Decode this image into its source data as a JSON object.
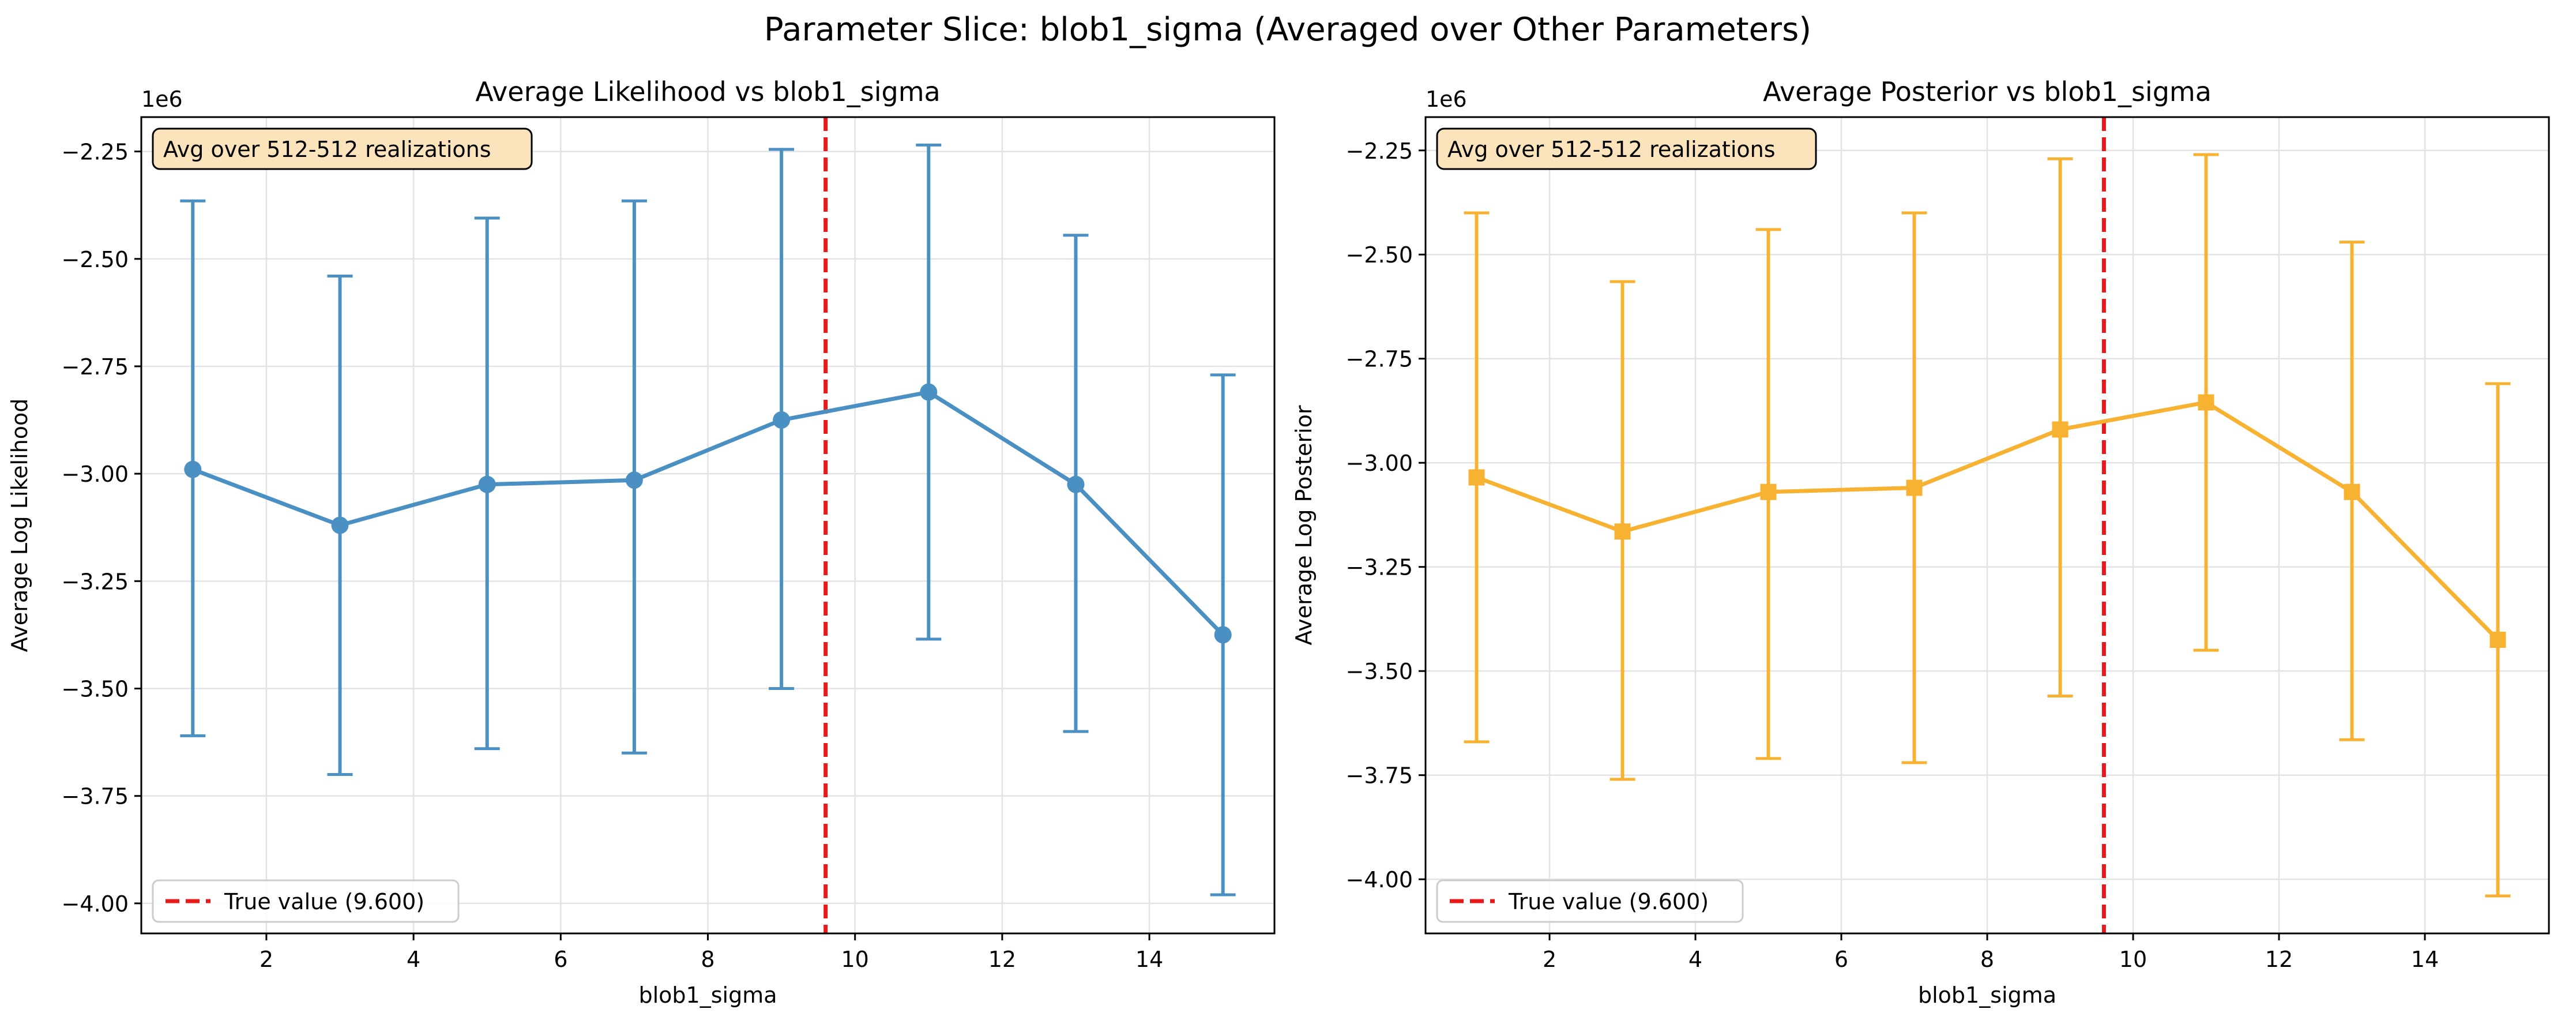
{
  "suptitle": "Parameter Slice: blob1_sigma (Averaged over Other Parameters)",
  "colors": {
    "likelihood": "#4a90c2",
    "posterior": "#f7b232",
    "true_line": "#e8191b",
    "annot_fill": "#fbe3bc",
    "grid": "#e3e3e3"
  },
  "chart_data": [
    {
      "type": "line",
      "title": "Average Likelihood vs blob1_sigma",
      "xlabel": "blob1_sigma",
      "ylabel": "Average Log Likelihood",
      "y_offset_label": "1e6",
      "xlim": [
        0.3,
        15.7
      ],
      "ylim": [
        -4.07,
        -2.17
      ],
      "xticks": [
        2,
        4,
        6,
        8,
        10,
        12,
        14
      ],
      "xtick_labels": [
        "2",
        "4",
        "6",
        "8",
        "10",
        "12",
        "14"
      ],
      "yticks": [
        -2.25,
        -2.5,
        -2.75,
        -3.0,
        -3.25,
        -3.5,
        -3.75,
        -4.0
      ],
      "ytick_labels": [
        "−2.25",
        "−2.50",
        "−2.75",
        "−3.00",
        "−3.25",
        "−3.50",
        "−3.75",
        "−4.00"
      ],
      "grid": true,
      "marker": "circle",
      "series": [
        {
          "x": [
            1,
            3,
            5,
            7,
            9,
            11,
            13,
            15
          ],
          "y": [
            -2.99,
            -3.12,
            -3.025,
            -3.015,
            -2.875,
            -2.81,
            -3.025,
            -3.375
          ],
          "yerr_low": [
            -3.61,
            -3.7,
            -3.64,
            -3.65,
            -3.5,
            -3.385,
            -3.6,
            -3.98
          ],
          "yerr_high": [
            -2.365,
            -2.54,
            -2.405,
            -2.365,
            -2.245,
            -2.235,
            -2.445,
            -2.77
          ],
          "color": "#4a90c2"
        }
      ],
      "true_value": 9.6,
      "legend": {
        "label": "True value (9.600)",
        "loc": "lower-left"
      },
      "annotation": {
        "text": "Avg over 512-512 realizations",
        "loc": "top-left"
      }
    },
    {
      "type": "line",
      "title": "Average Posterior vs blob1_sigma",
      "xlabel": "blob1_sigma",
      "ylabel": "Average Log Posterior",
      "y_offset_label": "1e6",
      "xlim": [
        0.3,
        15.7
      ],
      "ylim": [
        -4.13,
        -2.17
      ],
      "xticks": [
        2,
        4,
        6,
        8,
        10,
        12,
        14
      ],
      "xtick_labels": [
        "2",
        "4",
        "6",
        "8",
        "10",
        "12",
        "14"
      ],
      "yticks": [
        -2.25,
        -2.5,
        -2.75,
        -3.0,
        -3.25,
        -3.5,
        -3.75,
        -4.0
      ],
      "ytick_labels": [
        "−2.25",
        "−2.50",
        "−2.75",
        "−3.00",
        "−3.25",
        "−3.50",
        "−3.75",
        "−4.00"
      ],
      "grid": true,
      "marker": "square",
      "series": [
        {
          "x": [
            1,
            3,
            5,
            7,
            9,
            11,
            13,
            15
          ],
          "y": [
            -3.035,
            -3.165,
            -3.07,
            -3.06,
            -2.92,
            -2.855,
            -3.07,
            -3.425
          ],
          "yerr_low": [
            -3.67,
            -3.76,
            -3.71,
            -3.72,
            -3.56,
            -3.45,
            -3.665,
            -4.04
          ],
          "yerr_high": [
            -2.4,
            -2.565,
            -2.44,
            -2.4,
            -2.27,
            -2.26,
            -2.47,
            -2.81
          ],
          "color": "#f7b232"
        }
      ],
      "true_value": 9.6,
      "legend": {
        "label": "True value (9.600)",
        "loc": "lower-left"
      },
      "annotation": {
        "text": "Avg over 512-512 realizations",
        "loc": "top-left"
      }
    }
  ]
}
